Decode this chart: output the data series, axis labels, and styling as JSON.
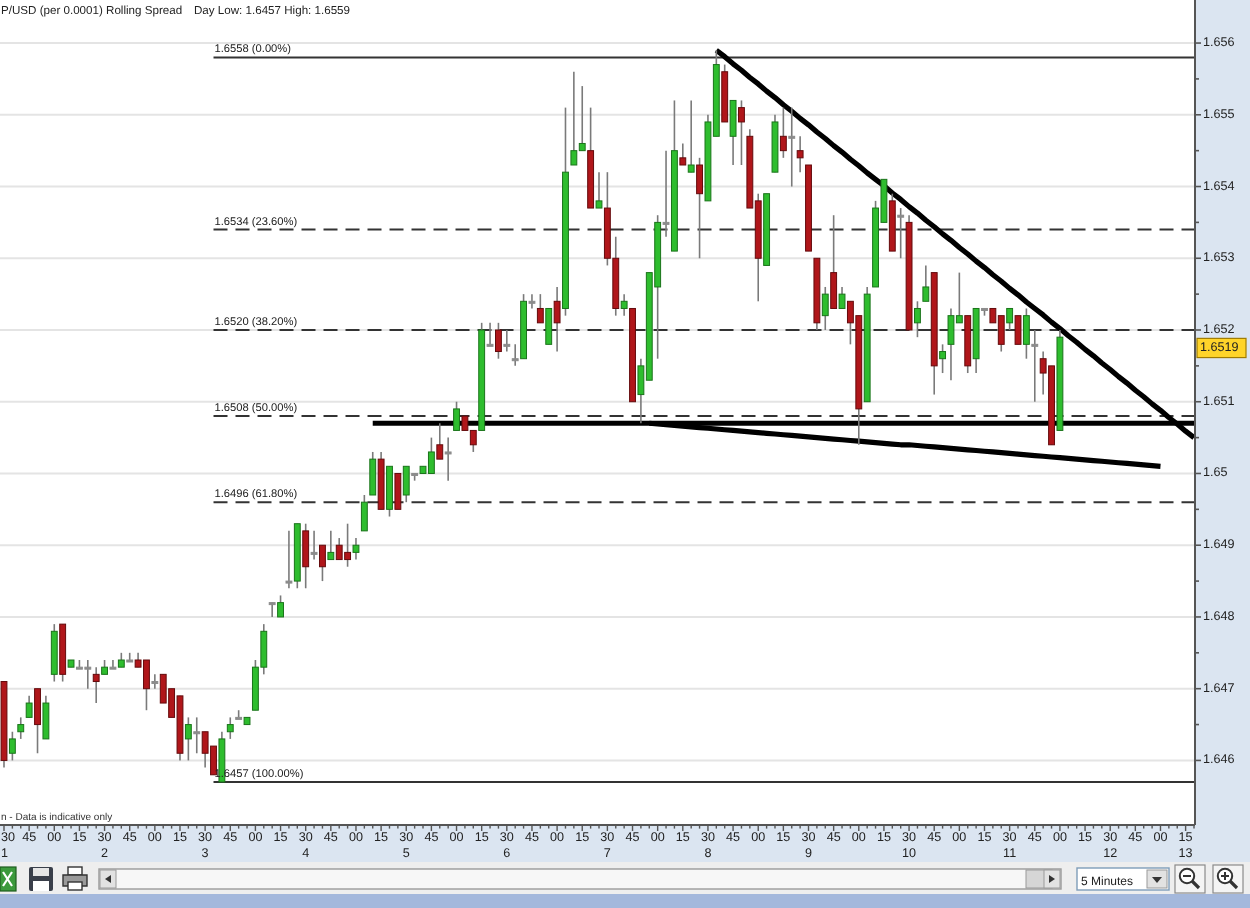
{
  "chart_data": {
    "type": "candlestick",
    "title": "P/USD (per 0.0001) Rolling Spread",
    "subtitle": "Day Low: 1.6457 High: 1.6559",
    "categories": [
      "30\n1",
      null,
      null,
      "45",
      null,
      null,
      "00",
      null,
      null,
      "15",
      null,
      null,
      "30\n2",
      null,
      null,
      "45",
      null,
      null,
      "00",
      null,
      null,
      "15",
      null,
      null,
      "30\n3",
      null,
      null,
      "45",
      null,
      null,
      "00",
      null,
      null,
      "15",
      null,
      null,
      "30\n4",
      null,
      null,
      "45",
      null,
      null,
      "00",
      null,
      null,
      "15",
      null,
      null,
      "30\n5",
      null,
      null,
      "45",
      null,
      null,
      "00",
      null,
      null,
      "15",
      null,
      null,
      "30\n6",
      null,
      null,
      "45",
      null,
      null,
      "00",
      null,
      null,
      "15",
      null,
      null,
      "30\n7",
      null,
      null,
      "45",
      null,
      null,
      "00",
      null,
      null,
      "15",
      null,
      null,
      "30\n8",
      null,
      null,
      "45",
      null,
      null,
      "00",
      null,
      null,
      "15",
      null,
      null,
      "30\n9",
      null,
      null,
      "45",
      null,
      null,
      "00",
      null,
      null,
      "15",
      null,
      null,
      "30\n10",
      null,
      null,
      "45",
      null,
      null,
      "00",
      null,
      null,
      "15",
      null,
      null,
      "30\n11",
      null,
      null,
      "45",
      null,
      null,
      "00",
      null,
      null,
      "15",
      null,
      null,
      "30\n12",
      null,
      null,
      "45",
      null,
      null,
      "00",
      null,
      null,
      "15\n13",
      null
    ],
    "ohlc": [
      [
        1.6471,
        1.6471,
        1.6459,
        1.646
      ],
      [
        1.6461,
        1.6464,
        1.646,
        1.6463
      ],
      [
        1.6464,
        1.6466,
        1.6463,
        1.6465
      ],
      [
        1.6466,
        1.6469,
        1.6466,
        1.6468
      ],
      [
        1.647,
        1.647,
        1.6461,
        1.6465
      ],
      [
        1.6463,
        1.6469,
        1.6463,
        1.6468
      ],
      [
        1.6472,
        1.6479,
        1.6471,
        1.6478
      ],
      [
        1.6479,
        1.6479,
        1.6471,
        1.6472
      ],
      [
        1.6473,
        1.6474,
        1.6473,
        1.6474
      ],
      [
        1.6473,
        1.6474,
        1.6473,
        1.6473
      ],
      [
        1.6473,
        1.6474,
        1.647,
        1.6473
      ],
      [
        1.6472,
        1.6473,
        1.6468,
        1.6471
      ],
      [
        1.6472,
        1.6474,
        1.6472,
        1.6473
      ],
      [
        1.6473,
        1.6474,
        1.6473,
        1.6473
      ],
      [
        1.6473,
        1.6475,
        1.6473,
        1.6474
      ],
      [
        1.6474,
        1.6475,
        1.6474,
        1.6474
      ],
      [
        1.6474,
        1.6475,
        1.6473,
        1.6473
      ],
      [
        1.6474,
        1.6474,
        1.6467,
        1.647
      ],
      [
        1.6471,
        1.6472,
        1.647,
        1.6471
      ],
      [
        1.6472,
        1.6472,
        1.6468,
        1.6468
      ],
      [
        1.647,
        1.647,
        1.6466,
        1.6466
      ],
      [
        1.6469,
        1.6469,
        1.646,
        1.6461
      ],
      [
        1.6463,
        1.6466,
        1.646,
        1.6465
      ],
      [
        1.6464,
        1.6466,
        1.6461,
        1.6464
      ],
      [
        1.6464,
        1.6464,
        1.6459,
        1.6461
      ],
      [
        1.6462,
        1.6462,
        1.6458,
        1.6458
      ],
      [
        1.6457,
        1.6464,
        1.6457,
        1.6463
      ],
      [
        1.6464,
        1.6466,
        1.6463,
        1.6465
      ],
      [
        1.6466,
        1.6467,
        1.6466,
        1.6466
      ],
      [
        1.6465,
        1.6466,
        1.6465,
        1.6466
      ],
      [
        1.6467,
        1.6474,
        1.6467,
        1.6473
      ],
      [
        1.6473,
        1.6479,
        1.6472,
        1.6478
      ],
      [
        1.6482,
        1.6482,
        1.648,
        1.6482
      ],
      [
        1.648,
        1.6483,
        1.648,
        1.6482
      ],
      [
        1.6485,
        1.6492,
        1.6484,
        1.6485
      ],
      [
        1.6485,
        1.6493,
        1.6484,
        1.6493
      ],
      [
        1.6492,
        1.6493,
        1.6484,
        1.6487
      ],
      [
        1.6489,
        1.6492,
        1.6488,
        1.6489
      ],
      [
        1.649,
        1.649,
        1.6485,
        1.6487
      ],
      [
        1.6488,
        1.6492,
        1.6488,
        1.6489
      ],
      [
        1.649,
        1.6491,
        1.6488,
        1.6488
      ],
      [
        1.6489,
        1.6493,
        1.6487,
        1.6488
      ],
      [
        1.6489,
        1.6491,
        1.6488,
        1.649
      ],
      [
        1.6492,
        1.6497,
        1.6492,
        1.6496
      ],
      [
        1.6497,
        1.6503,
        1.6497,
        1.6502
      ],
      [
        1.6502,
        1.6503,
        1.6495,
        1.6495
      ],
      [
        1.6495,
        1.6501,
        1.6494,
        1.6501
      ],
      [
        1.65,
        1.65,
        1.6495,
        1.6495
      ],
      [
        1.6497,
        1.6501,
        1.6496,
        1.6501
      ],
      [
        1.65,
        1.65,
        1.6499,
        1.65
      ],
      [
        1.65,
        1.6501,
        1.65,
        1.6501
      ],
      [
        1.65,
        1.6505,
        1.65,
        1.6503
      ],
      [
        1.6504,
        1.6507,
        1.6502,
        1.6502
      ],
      [
        1.6503,
        1.6505,
        1.6499,
        1.6503
      ],
      [
        1.6506,
        1.651,
        1.6506,
        1.6509
      ],
      [
        1.6508,
        1.6508,
        1.6506,
        1.6506
      ],
      [
        1.6506,
        1.6506,
        1.6503,
        1.6504
      ],
      [
        1.6506,
        1.6521,
        1.6506,
        1.652
      ],
      [
        1.6518,
        1.6521,
        1.6518,
        1.6518
      ],
      [
        1.652,
        1.6521,
        1.6516,
        1.6517
      ],
      [
        1.6518,
        1.652,
        1.6517,
        1.6518
      ],
      [
        1.6516,
        1.6518,
        1.6515,
        1.6516
      ],
      [
        1.6516,
        1.6525,
        1.6516,
        1.6524
      ],
      [
        1.6524,
        1.6525,
        1.6523,
        1.6524
      ],
      [
        1.6523,
        1.6525,
        1.6521,
        1.6521
      ],
      [
        1.6518,
        1.6523,
        1.6518,
        1.6523
      ],
      [
        1.6524,
        1.6526,
        1.6517,
        1.6521
      ],
      [
        1.6523,
        1.6551,
        1.6522,
        1.6542
      ],
      [
        1.6543,
        1.6556,
        1.6543,
        1.6545
      ],
      [
        1.6545,
        1.6554,
        1.6545,
        1.6546
      ],
      [
        1.6545,
        1.6551,
        1.6537,
        1.6537
      ],
      [
        1.6537,
        1.6542,
        1.6537,
        1.6538
      ],
      [
        1.6537,
        1.6542,
        1.6529,
        1.653
      ],
      [
        1.653,
        1.6533,
        1.6522,
        1.6523
      ],
      [
        1.6523,
        1.6525,
        1.6522,
        1.6524
      ],
      [
        1.6523,
        1.6523,
        1.651,
        1.651
      ],
      [
        1.6511,
        1.6516,
        1.6507,
        1.6515
      ],
      [
        1.6513,
        1.6528,
        1.6513,
        1.6528
      ],
      [
        1.6526,
        1.6536,
        1.6516,
        1.6535
      ],
      [
        1.6535,
        1.6545,
        1.6533,
        1.6535
      ],
      [
        1.6531,
        1.6552,
        1.6531,
        1.6545
      ],
      [
        1.6544,
        1.6546,
        1.6543,
        1.6543
      ],
      [
        1.6542,
        1.6552,
        1.6542,
        1.6543
      ],
      [
        1.6543,
        1.6544,
        1.653,
        1.6539
      ],
      [
        1.6538,
        1.655,
        1.6538,
        1.6549
      ],
      [
        1.6547,
        1.6559,
        1.6547,
        1.6557
      ],
      [
        1.6556,
        1.6557,
        1.6549,
        1.6549
      ],
      [
        1.6547,
        1.6552,
        1.6543,
        1.6552
      ],
      [
        1.6551,
        1.6552,
        1.6543,
        1.6549
      ],
      [
        1.6547,
        1.6548,
        1.6537,
        1.6537
      ],
      [
        1.6538,
        1.6539,
        1.6524,
        1.653
      ],
      [
        1.6529,
        1.6539,
        1.6529,
        1.6539
      ],
      [
        1.6542,
        1.655,
        1.6542,
        1.6549
      ],
      [
        1.6547,
        1.6551,
        1.6544,
        1.6545
      ],
      [
        1.6547,
        1.6551,
        1.654,
        1.6547
      ],
      [
        1.6545,
        1.6547,
        1.6542,
        1.6544
      ],
      [
        1.6543,
        1.6543,
        1.6531,
        1.6531
      ],
      [
        1.653,
        1.653,
        1.652,
        1.6521
      ],
      [
        1.6522,
        1.6526,
        1.652,
        1.6525
      ],
      [
        1.6528,
        1.6536,
        1.6523,
        1.6523
      ],
      [
        1.6523,
        1.6526,
        1.6523,
        1.6525
      ],
      [
        1.6524,
        1.6524,
        1.6518,
        1.6521
      ],
      [
        1.6522,
        1.6522,
        1.6504,
        1.6509
      ],
      [
        1.651,
        1.6526,
        1.651,
        1.6525
      ],
      [
        1.6526,
        1.6538,
        1.6526,
        1.6537
      ],
      [
        1.6535,
        1.6541,
        1.6535,
        1.6541
      ],
      [
        1.6538,
        1.6539,
        1.6531,
        1.6531
      ],
      [
        1.6536,
        1.6537,
        1.653,
        1.6536
      ],
      [
        1.6535,
        1.6536,
        1.652,
        1.652
      ],
      [
        1.6521,
        1.6524,
        1.6519,
        1.6523
      ],
      [
        1.6524,
        1.6529,
        1.6524,
        1.6526
      ],
      [
        1.6528,
        1.6528,
        1.6511,
        1.6515
      ],
      [
        1.6516,
        1.6518,
        1.6514,
        1.6517
      ],
      [
        1.6518,
        1.6523,
        1.6513,
        1.6522
      ],
      [
        1.6521,
        1.6528,
        1.6521,
        1.6522
      ],
      [
        1.6522,
        1.6522,
        1.6514,
        1.6515
      ],
      [
        1.6516,
        1.6523,
        1.6514,
        1.6523
      ],
      [
        1.6523,
        1.6523,
        1.6522,
        1.6523
      ],
      [
        1.6523,
        1.6523,
        1.6521,
        1.6521
      ],
      [
        1.6522,
        1.6522,
        1.6517,
        1.6518
      ],
      [
        1.6521,
        1.6523,
        1.652,
        1.6523
      ],
      [
        1.6522,
        1.6522,
        1.6518,
        1.6518
      ],
      [
        1.6518,
        1.6523,
        1.6516,
        1.6522
      ],
      [
        1.6518,
        1.652,
        1.651,
        1.6518
      ],
      [
        1.6516,
        1.6517,
        1.6511,
        1.6514
      ],
      [
        1.6515,
        1.6515,
        1.6504,
        1.6504
      ],
      [
        1.6506,
        1.652,
        1.6506,
        1.6519
      ],
      null,
      null,
      null,
      null,
      null,
      null,
      null,
      null,
      null,
      null,
      null,
      null,
      null,
      null,
      null,
      null
    ],
    "series": [
      {
        "type": "line",
        "name": "1.6558 (0.00%)",
        "color": "#333333",
        "line_style": "solid",
        "values": [
          null,
          null,
          null,
          null,
          null,
          null,
          null,
          null,
          null,
          null,
          null,
          null,
          null,
          null,
          null,
          null,
          null,
          null,
          null,
          null,
          null,
          null,
          null,
          null,
          null,
          1.6558,
          1.6558,
          1.6558,
          1.6558,
          1.6558,
          1.6558,
          1.6558,
          1.6558,
          1.6558,
          1.6558,
          1.6558,
          1.6558,
          1.6558,
          1.6558,
          1.6558,
          1.6558,
          1.6558,
          1.6558,
          1.6558,
          1.6558,
          1.6558,
          1.6558,
          1.6558,
          1.6558,
          1.6558,
          1.6558,
          1.6558,
          1.6558,
          1.6558,
          1.6558,
          1.6558,
          1.6558,
          1.6558,
          1.6558,
          1.6558,
          1.6558,
          1.6558,
          1.6558,
          1.6558,
          1.6558,
          1.6558,
          1.6558,
          1.6558,
          1.6558,
          1.6558,
          1.6558,
          1.6558,
          1.6558,
          1.6558,
          1.6558,
          1.6558,
          1.6558,
          1.6558,
          1.6558,
          1.6558,
          1.6558,
          1.6558,
          1.6558,
          1.6558,
          1.6558,
          1.6558,
          1.6558,
          1.6558,
          1.6558,
          1.6558,
          1.6558,
          1.6558,
          1.6558,
          1.6558,
          1.6558,
          1.6558,
          1.6558,
          1.6558,
          1.6558,
          1.6558,
          1.6558,
          1.6558,
          1.6558,
          1.6558,
          1.6558,
          1.6558,
          1.6558,
          1.6558,
          1.6558,
          1.6558,
          1.6558,
          1.6558,
          1.6558,
          1.6558,
          1.6558,
          1.6558,
          1.6558,
          1.6558,
          1.6558,
          1.6558,
          1.6558,
          1.6558,
          1.6558,
          1.6558,
          1.6558,
          1.6558,
          1.6558,
          1.6558,
          1.6558,
          1.6558,
          1.6558,
          1.6558,
          1.6558,
          1.6558,
          1.6558,
          1.6558,
          1.6558,
          1.6558,
          1.6558,
          1.6558,
          1.6558,
          1.6558,
          1.6558
        ]
      },
      {
        "type": "line",
        "name": "1.6534 (23.60%)",
        "color": "#333333",
        "line_style": "dashed",
        "values": [
          null,
          null,
          null,
          null,
          null,
          null,
          null,
          null,
          null,
          null,
          null,
          null,
          null,
          null,
          null,
          null,
          null,
          null,
          null,
          null,
          null,
          null,
          null,
          null,
          null,
          1.6534,
          1.6534,
          1.6534,
          1.6534,
          1.6534,
          1.6534,
          1.6534,
          1.6534,
          1.6534,
          1.6534,
          1.6534,
          1.6534,
          1.6534,
          1.6534,
          1.6534,
          1.6534,
          1.6534,
          1.6534,
          1.6534,
          1.6534,
          1.6534,
          1.6534,
          1.6534,
          1.6534,
          1.6534,
          1.6534,
          1.6534,
          1.6534,
          1.6534,
          1.6534,
          1.6534,
          1.6534,
          1.6534,
          1.6534,
          1.6534,
          1.6534,
          1.6534,
          1.6534,
          1.6534,
          1.6534,
          1.6534,
          1.6534,
          1.6534,
          1.6534,
          1.6534,
          1.6534,
          1.6534,
          1.6534,
          1.6534,
          1.6534,
          1.6534,
          1.6534,
          1.6534,
          1.6534,
          1.6534,
          1.6534,
          1.6534,
          1.6534,
          1.6534,
          1.6534,
          1.6534,
          1.6534,
          1.6534,
          1.6534,
          1.6534,
          1.6534,
          1.6534,
          1.6534,
          1.6534,
          1.6534,
          1.6534,
          1.6534,
          1.6534,
          1.6534,
          1.6534,
          1.6534,
          1.6534,
          1.6534,
          1.6534,
          1.6534,
          1.6534,
          1.6534,
          1.6534,
          1.6534,
          1.6534,
          1.6534,
          1.6534,
          1.6534,
          1.6534,
          1.6534,
          1.6534,
          1.6534,
          1.6534,
          1.6534,
          1.6534,
          1.6534,
          1.6534,
          1.6534,
          1.6534,
          1.6534,
          1.6534,
          1.6534,
          1.6534,
          1.6534,
          1.6534,
          1.6534,
          1.6534,
          1.6534,
          1.6534,
          1.6534,
          1.6534,
          1.6534,
          1.6534,
          1.6534,
          1.6534,
          1.6534,
          1.6534,
          1.6534
        ]
      },
      {
        "type": "line",
        "name": "1.6520 (38.20%)",
        "color": "#333333",
        "line_style": "dashed",
        "values": [
          null,
          null,
          null,
          null,
          null,
          null,
          null,
          null,
          null,
          null,
          null,
          null,
          null,
          null,
          null,
          null,
          null,
          null,
          null,
          null,
          null,
          null,
          null,
          null,
          null,
          1.652,
          1.652,
          1.652,
          1.652,
          1.652,
          1.652,
          1.652,
          1.652,
          1.652,
          1.652,
          1.652,
          1.652,
          1.652,
          1.652,
          1.652,
          1.652,
          1.652,
          1.652,
          1.652,
          1.652,
          1.652,
          1.652,
          1.652,
          1.652,
          1.652,
          1.652,
          1.652,
          1.652,
          1.652,
          1.652,
          1.652,
          1.652,
          1.652,
          1.652,
          1.652,
          1.652,
          1.652,
          1.652,
          1.652,
          1.652,
          1.652,
          1.652,
          1.652,
          1.652,
          1.652,
          1.652,
          1.652,
          1.652,
          1.652,
          1.652,
          1.652,
          1.652,
          1.652,
          1.652,
          1.652,
          1.652,
          1.652,
          1.652,
          1.652,
          1.652,
          1.652,
          1.652,
          1.652,
          1.652,
          1.652,
          1.652,
          1.652,
          1.652,
          1.652,
          1.652,
          1.652,
          1.652,
          1.652,
          1.652,
          1.652,
          1.652,
          1.652,
          1.652,
          1.652,
          1.652,
          1.652,
          1.652,
          1.652,
          1.652,
          1.652,
          1.652,
          1.652,
          1.652,
          1.652,
          1.652,
          1.652,
          1.652,
          1.652,
          1.652,
          1.652,
          1.652,
          1.652,
          1.652,
          1.652,
          1.652,
          1.652,
          1.652,
          1.652,
          1.652,
          1.652,
          1.652,
          1.652,
          1.652,
          1.652,
          1.652,
          1.652,
          1.652,
          1.652,
          1.652,
          1.652,
          1.652,
          1.652,
          1.652
        ]
      },
      {
        "type": "line",
        "name": "1.6508 (50.00%)",
        "color": "#333333",
        "line_style": "dashed",
        "values": [
          null,
          null,
          null,
          null,
          null,
          null,
          null,
          null,
          null,
          null,
          null,
          null,
          null,
          null,
          null,
          null,
          null,
          null,
          null,
          null,
          null,
          null,
          null,
          null,
          null,
          1.6508,
          1.6508,
          1.6508,
          1.6508,
          1.6508,
          1.6508,
          1.6508,
          1.6508,
          1.6508,
          1.6508,
          1.6508,
          1.6508,
          1.6508,
          1.6508,
          1.6508,
          1.6508,
          1.6508,
          1.6508,
          1.6508,
          1.6508,
          1.6508,
          1.6508,
          1.6508,
          1.6508,
          1.6508,
          1.6508,
          1.6508,
          1.6508,
          1.6508,
          1.6508,
          1.6508,
          1.6508,
          1.6508,
          1.6508,
          1.6508,
          1.6508,
          1.6508,
          1.6508,
          1.6508,
          1.6508,
          1.6508,
          1.6508,
          1.6508,
          1.6508,
          1.6508,
          1.6508,
          1.6508,
          1.6508,
          1.6508,
          1.6508,
          1.6508,
          1.6508,
          1.6508,
          1.6508,
          1.6508,
          1.6508,
          1.6508,
          1.6508,
          1.6508,
          1.6508,
          1.6508,
          1.6508,
          1.6508,
          1.6508,
          1.6508,
          1.6508,
          1.6508,
          1.6508,
          1.6508,
          1.6508,
          1.6508,
          1.6508,
          1.6508,
          1.6508,
          1.6508,
          1.6508,
          1.6508,
          1.6508,
          1.6508,
          1.6508,
          1.6508,
          1.6508,
          1.6508,
          1.6508,
          1.6508,
          1.6508,
          1.6508,
          1.6508,
          1.6508,
          1.6508,
          1.6508,
          1.6508,
          1.6508,
          1.6508,
          1.6508,
          1.6508,
          1.6508,
          1.6508,
          1.6508,
          1.6508,
          1.6508,
          1.6508,
          1.6508,
          1.6508,
          1.6508,
          1.6508,
          1.6508,
          1.6508,
          1.6508,
          1.6508,
          1.6508,
          1.6508,
          1.6508,
          1.6508,
          1.6508,
          1.6508,
          1.6508,
          1.6508
        ]
      },
      {
        "type": "line",
        "name": "1.6496 (61.80%)",
        "color": "#333333",
        "line_style": "dashed",
        "values": [
          null,
          null,
          null,
          null,
          null,
          null,
          null,
          null,
          null,
          null,
          null,
          null,
          null,
          null,
          null,
          null,
          null,
          null,
          null,
          null,
          null,
          null,
          null,
          null,
          null,
          1.6496,
          1.6496,
          1.6496,
          1.6496,
          1.6496,
          1.6496,
          1.6496,
          1.6496,
          1.6496,
          1.6496,
          1.6496,
          1.6496,
          1.6496,
          1.6496,
          1.6496,
          1.6496,
          1.6496,
          1.6496,
          1.6496,
          1.6496,
          1.6496,
          1.6496,
          1.6496,
          1.6496,
          1.6496,
          1.6496,
          1.6496,
          1.6496,
          1.6496,
          1.6496,
          1.6496,
          1.6496,
          1.6496,
          1.6496,
          1.6496,
          1.6496,
          1.6496,
          1.6496,
          1.6496,
          1.6496,
          1.6496,
          1.6496,
          1.6496,
          1.6496,
          1.6496,
          1.6496,
          1.6496,
          1.6496,
          1.6496,
          1.6496,
          1.6496,
          1.6496,
          1.6496,
          1.6496,
          1.6496,
          1.6496,
          1.6496,
          1.6496,
          1.6496,
          1.6496,
          1.6496,
          1.6496,
          1.6496,
          1.6496,
          1.6496,
          1.6496,
          1.6496,
          1.6496,
          1.6496,
          1.6496,
          1.6496,
          1.6496,
          1.6496,
          1.6496,
          1.6496,
          1.6496,
          1.6496,
          1.6496,
          1.6496,
          1.6496,
          1.6496,
          1.6496,
          1.6496,
          1.6496,
          1.6496,
          1.6496,
          1.6496,
          1.6496,
          1.6496,
          1.6496,
          1.6496,
          1.6496,
          1.6496,
          1.6496,
          1.6496,
          1.6496,
          1.6496,
          1.6496,
          1.6496,
          1.6496,
          1.6496,
          1.6496,
          1.6496,
          1.6496,
          1.6496,
          1.6496,
          1.6496,
          1.6496,
          1.6496,
          1.6496,
          1.6496,
          1.6496,
          1.6496,
          1.6496,
          1.6496,
          1.6496,
          1.6496,
          1.6496
        ]
      },
      {
        "type": "line",
        "name": "1.6457 (100.00%)",
        "color": "#333333",
        "line_style": "solid",
        "values": [
          null,
          null,
          null,
          null,
          null,
          null,
          null,
          null,
          null,
          null,
          null,
          null,
          null,
          null,
          null,
          null,
          null,
          null,
          null,
          null,
          null,
          null,
          null,
          null,
          null,
          1.6457,
          1.6457,
          1.6457,
          1.6457,
          1.6457,
          1.6457,
          1.6457,
          1.6457,
          1.6457,
          1.6457,
          1.6457,
          1.6457,
          1.6457,
          1.6457,
          1.6457,
          1.6457,
          1.6457,
          1.6457,
          1.6457,
          1.6457,
          1.6457,
          1.6457,
          1.6457,
          1.6457,
          1.6457,
          1.6457,
          1.6457,
          1.6457,
          1.6457,
          1.6457,
          1.6457,
          1.6457,
          1.6457,
          1.6457,
          1.6457,
          1.6457,
          1.6457,
          1.6457,
          1.6457,
          1.6457,
          1.6457,
          1.6457,
          1.6457,
          1.6457,
          1.6457,
          1.6457,
          1.6457,
          1.6457,
          1.6457,
          1.6457,
          1.6457,
          1.6457,
          1.6457,
          1.6457,
          1.6457,
          1.6457,
          1.6457,
          1.6457,
          1.6457,
          1.6457,
          1.6457,
          1.6457,
          1.6457,
          1.6457,
          1.6457,
          1.6457,
          1.6457,
          1.6457,
          1.6457,
          1.6457,
          1.6457,
          1.6457,
          1.6457,
          1.6457,
          1.6457,
          1.6457,
          1.6457,
          1.6457,
          1.6457,
          1.6457,
          1.6457,
          1.6457,
          1.6457,
          1.6457,
          1.6457,
          1.6457,
          1.6457,
          1.6457,
          1.6457,
          1.6457,
          1.6457,
          1.6457,
          1.6457,
          1.6457,
          1.6457,
          1.6457,
          1.6457,
          1.6457,
          1.6457,
          1.6457,
          1.6457,
          1.6457,
          1.6457,
          1.6457,
          1.6457,
          1.6457,
          1.6457,
          1.6457,
          1.6457,
          1.6457,
          1.6457,
          1.6457,
          1.6457,
          1.6457,
          1.6457,
          1.6457,
          1.6457,
          1.6457
        ]
      },
      {
        "type": "line",
        "color": "#000000",
        "line_style": "solid",
        "values": [
          null,
          null,
          null,
          null,
          null,
          null,
          null,
          null,
          null,
          null,
          null,
          null,
          null,
          null,
          null,
          null,
          null,
          null,
          null,
          null,
          null,
          null,
          null,
          null,
          null,
          null,
          null,
          null,
          null,
          null,
          null,
          null,
          null,
          null,
          null,
          null,
          null,
          null,
          null,
          null,
          null,
          null,
          null,
          null,
          null,
          null,
          null,
          null,
          null,
          null,
          null,
          null,
          null,
          null,
          null,
          null,
          null,
          null,
          null,
          null,
          null,
          null,
          null,
          null,
          null,
          null,
          null,
          null,
          null,
          null,
          null,
          null,
          null,
          null,
          null,
          null,
          null,
          null,
          null,
          null,
          null,
          null,
          null,
          null,
          null,
          1.6559,
          1.65581,
          1.65571,
          1.65562,
          1.65552,
          1.65543,
          1.65533,
          1.65524,
          1.65514,
          1.65505,
          1.65495,
          1.65486,
          1.65476,
          1.65467,
          1.65457,
          1.65448,
          1.65438,
          1.65429,
          1.65419,
          1.6541,
          1.65401,
          1.65391,
          1.65382,
          1.65372,
          1.65363,
          1.65353,
          1.65344,
          1.65334,
          1.65325,
          1.65315,
          1.65306,
          1.65296,
          1.65287,
          1.65277,
          1.65268,
          1.65258,
          1.65249,
          1.65239,
          1.6523,
          1.65221,
          1.65211,
          1.65202,
          1.65192,
          1.65183,
          1.65173,
          1.65164,
          1.65154,
          1.65145,
          1.65135,
          1.65126,
          1.65116,
          1.65107,
          1.65097,
          1.65088,
          1.65078,
          1.65069,
          1.65059,
          1.6505
        ]
      },
      {
        "type": "line",
        "color": "#000000",
        "line_style": "solid",
        "values": [
          null,
          null,
          null,
          null,
          null,
          null,
          null,
          null,
          null,
          null,
          null,
          null,
          null,
          null,
          null,
          null,
          null,
          null,
          null,
          null,
          null,
          null,
          null,
          null,
          null,
          null,
          null,
          null,
          null,
          null,
          null,
          null,
          null,
          null,
          null,
          null,
          null,
          null,
          null,
          null,
          null,
          null,
          null,
          null,
          1.6507,
          1.6507,
          1.6507,
          1.6507,
          1.6507,
          1.6507,
          1.6507,
          1.6507,
          1.6507,
          1.6507,
          1.6507,
          1.6507,
          1.6507,
          1.6507,
          1.6507,
          1.6507,
          1.6507,
          1.6507,
          1.6507,
          1.6507,
          1.6507,
          1.6507,
          1.6507,
          1.6507,
          1.6507,
          1.6507,
          1.6507,
          1.6507,
          1.6507,
          1.6507,
          1.6507,
          1.6507,
          1.6507,
          1.6507,
          1.6507,
          1.6507,
          1.6507,
          1.6507,
          1.6507,
          1.6507,
          1.6507,
          1.6507,
          1.6507,
          1.6507,
          1.6507,
          1.6507,
          1.6507,
          1.6507,
          1.6507,
          1.6507,
          1.6507,
          1.6507,
          1.6507,
          1.6507,
          1.6507,
          1.6507,
          1.6507,
          1.6507,
          1.6507,
          1.6507,
          1.6507,
          1.6507,
          1.6507,
          1.6507,
          1.6507,
          1.6507,
          1.6507,
          1.6507,
          1.6507,
          1.6507,
          1.6507,
          1.6507,
          1.6507,
          1.6507,
          1.6507,
          1.6507,
          1.6507,
          1.6507,
          1.6507,
          1.6507,
          1.6507,
          1.6507,
          1.6507,
          1.6507,
          1.6507,
          1.6507,
          1.6507,
          1.6507,
          1.6507,
          1.6507,
          1.6507,
          1.6507,
          1.6507,
          1.6507,
          1.6507,
          1.6507,
          1.6507,
          1.6507,
          1.6507
        ]
      },
      {
        "type": "line",
        "color": "#000000",
        "line_style": "solid",
        "values": [
          null,
          null,
          null,
          null,
          null,
          null,
          null,
          null,
          null,
          null,
          null,
          null,
          null,
          null,
          null,
          null,
          null,
          null,
          null,
          null,
          null,
          null,
          null,
          null,
          null,
          null,
          null,
          null,
          null,
          null,
          null,
          null,
          null,
          null,
          null,
          null,
          null,
          null,
          null,
          null,
          null,
          null,
          null,
          null,
          null,
          null,
          null,
          null,
          null,
          null,
          null,
          null,
          null,
          null,
          null,
          null,
          null,
          null,
          null,
          null,
          null,
          null,
          null,
          null,
          null,
          null,
          null,
          null,
          null,
          null,
          null,
          null,
          null,
          null,
          null,
          null,
          null,
          1.6507,
          1.65069,
          1.65068,
          1.65067,
          1.65066,
          1.65065,
          1.65064,
          1.65063,
          1.65062,
          1.65061,
          1.6506,
          1.65059,
          1.65058,
          1.65057,
          1.65056,
          1.65055,
          1.65054,
          1.65053,
          1.65052,
          1.65051,
          1.6505,
          1.65049,
          1.65048,
          1.65047,
          1.65046,
          1.65045,
          1.65044,
          1.65043,
          1.65042,
          1.65041,
          1.6504,
          1.6504,
          1.65039,
          1.65038,
          1.65037,
          1.65036,
          1.65035,
          1.65034,
          1.65033,
          1.65032,
          1.65031,
          1.6503,
          1.65029,
          1.65028,
          1.65027,
          1.65026,
          1.65025,
          1.65024,
          1.65023,
          1.65022,
          1.65021,
          1.6502,
          1.65019,
          1.65018,
          1.65017,
          1.65016,
          1.65015,
          1.65014,
          1.65013,
          1.65012,
          1.65011,
          1.6501,
          null,
          null,
          null,
          null
        ]
      }
    ],
    "ylim": [
      1.6451,
      1.6566
    ],
    "yticks": [
      1.646,
      {
        "value": 1.6465,
        "label": null
      },
      1.647,
      {
        "value": 1.6475,
        "label": null
      },
      1.648,
      {
        "value": 1.6485,
        "label": null
      },
      1.649,
      {
        "value": 1.6495,
        "label": null
      },
      1.65,
      {
        "value": 1.6505,
        "label": null
      },
      1.651,
      {
        "value": 1.6515,
        "label": null
      },
      1.652,
      {
        "value": 1.6525,
        "label": null
      },
      1.653,
      {
        "value": 1.6535,
        "label": null
      },
      1.654,
      {
        "value": 1.6545,
        "label": null
      },
      1.655,
      {
        "value": 1.6555,
        "label": null
      },
      1.656
    ],
    "grid": "y",
    "annotations": [
      "n - Data is indicative only",
      "5 Minutes",
      "1.6519"
    ]
  }
}
